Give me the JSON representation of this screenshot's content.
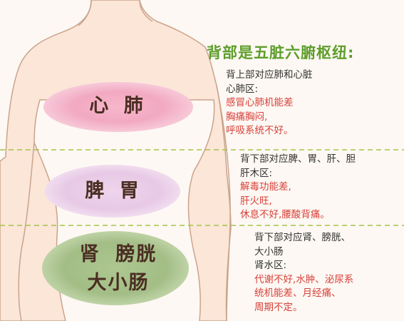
{
  "title": "背部是五脏六腑枢纽:",
  "zones": {
    "upper": {
      "label": "心 肺"
    },
    "middle": {
      "label": "脾 胃"
    },
    "lower": {
      "line1": "肾 膀胱",
      "line2": "大小肠"
    }
  },
  "notes": {
    "upper": {
      "desc": "背上部对应肺和心脏",
      "area": "心肺区:",
      "symptoms": [
        "感冒心肺机能差",
        "胸痛胸闷,",
        "呼吸系统不好。"
      ]
    },
    "middle": {
      "desc": "背下部对应脾、胃、肝、胆",
      "area": "肝木区:",
      "symptoms": [
        "解毒功能差,",
        "肝火旺,",
        "休息不好,腰酸背痛。"
      ]
    },
    "lower": {
      "desc": [
        "背下部对应肾、膀胱、",
        "大小肠"
      ],
      "area": "肾水区:",
      "symptoms": [
        "代谢不好,水肿、泌尿系",
        "统机能差、月经痛、",
        "周期不定。"
      ]
    }
  },
  "colors": {
    "title": "#5e9e2c",
    "symptom_text": "#d8403a",
    "heart_lung_zone": "#f0a9c1",
    "spleen_stomach_zone": "#ead0ea",
    "kidney_intestine_zone": "#a8c08a",
    "divider": "#a6c24a",
    "body_outline": "#c9a58e",
    "skin": "#fbe7da"
  }
}
